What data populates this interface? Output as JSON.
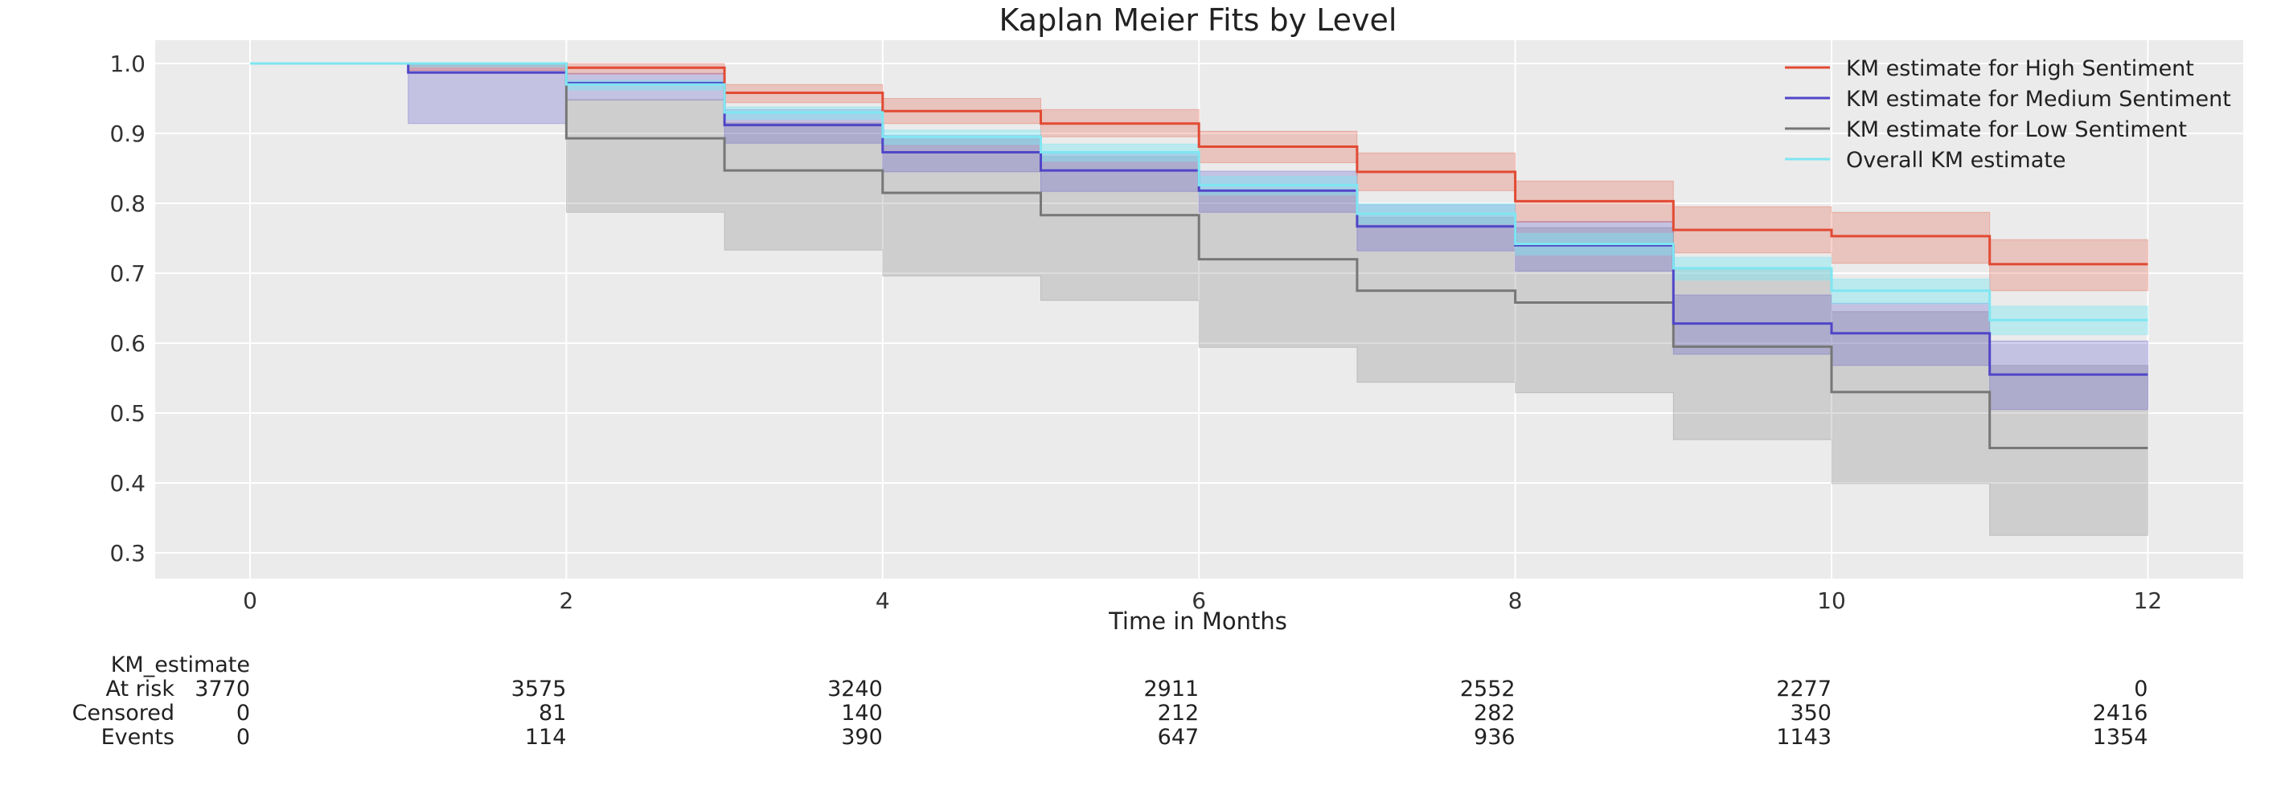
{
  "chart_data": {
    "type": "line",
    "title": "Kaplan Meier Fits by Level",
    "xlabel": "Time in Months",
    "ylabel": "",
    "xlim": [
      -0.6,
      12.6
    ],
    "ylim": [
      0.26,
      1.035
    ],
    "xticks": [
      0,
      2,
      4,
      6,
      8,
      10,
      12
    ],
    "yticks": [
      0.3,
      0.4,
      0.5,
      0.6,
      0.7,
      0.8,
      0.9,
      1.0
    ],
    "grid": true,
    "legend_position": "top-right",
    "series": [
      {
        "name": "KM estimate for High Sentiment",
        "color": "#e24a33",
        "step": "post",
        "x": [
          0,
          1,
          2,
          3,
          4,
          5,
          6,
          7,
          8,
          9,
          10,
          11,
          12
        ],
        "y": [
          1.0,
          1.0,
          0.994,
          0.958,
          0.932,
          0.914,
          0.881,
          0.845,
          0.803,
          0.762,
          0.753,
          0.713,
          0.713
        ],
        "ci_lower": [
          1.0,
          0.99,
          0.985,
          0.944,
          0.914,
          0.895,
          0.858,
          0.818,
          0.773,
          0.729,
          0.714,
          0.675,
          0.675
        ],
        "ci_upper": [
          1.0,
          1.0,
          1.0,
          0.97,
          0.95,
          0.934,
          0.903,
          0.872,
          0.832,
          0.795,
          0.787,
          0.748,
          0.748
        ]
      },
      {
        "name": "KM estimate for Medium Sentiment",
        "color": "#5046c8",
        "step": "post",
        "x": [
          0,
          1,
          2,
          3,
          4,
          5,
          6,
          7,
          8,
          9,
          10,
          11,
          12
        ],
        "y": [
          1.0,
          0.987,
          0.972,
          0.912,
          0.873,
          0.847,
          0.818,
          0.767,
          0.74,
          0.628,
          0.614,
          0.555,
          0.555
        ],
        "ci_lower": [
          1.0,
          0.914,
          0.948,
          0.886,
          0.845,
          0.817,
          0.787,
          0.732,
          0.703,
          0.584,
          0.568,
          0.505,
          0.505
        ],
        "ci_upper": [
          1.0,
          0.998,
          0.986,
          0.934,
          0.897,
          0.873,
          0.846,
          0.798,
          0.774,
          0.669,
          0.657,
          0.603,
          0.603
        ]
      },
      {
        "name": "KM estimate for Low Sentiment",
        "color": "#777777",
        "step": "post",
        "x": [
          0,
          1,
          2,
          3,
          4,
          5,
          6,
          7,
          8,
          9,
          10,
          11,
          12
        ],
        "y": [
          1.0,
          1.0,
          0.893,
          0.847,
          0.815,
          0.783,
          0.72,
          0.675,
          0.658,
          0.595,
          0.53,
          0.45,
          0.45
        ],
        "ci_lower": [
          1.0,
          1.0,
          0.787,
          0.733,
          0.696,
          0.661,
          0.594,
          0.544,
          0.529,
          0.462,
          0.399,
          0.325,
          0.325
        ],
        "ci_upper": [
          1.0,
          1.0,
          0.948,
          0.915,
          0.892,
          0.867,
          0.815,
          0.78,
          0.765,
          0.706,
          0.645,
          0.568,
          0.568
        ]
      },
      {
        "name": "Overall KM estimate",
        "color": "#7fe6f2",
        "step": "post",
        "x": [
          0,
          1,
          2,
          3,
          4,
          5,
          6,
          7,
          8,
          9,
          10,
          11,
          12
        ],
        "y": [
          1.0,
          1.0,
          0.97,
          0.93,
          0.895,
          0.873,
          0.826,
          0.785,
          0.742,
          0.707,
          0.675,
          0.633,
          0.633
        ],
        "ci_lower": [
          1.0,
          0.995,
          0.962,
          0.92,
          0.884,
          0.86,
          0.812,
          0.77,
          0.726,
          0.69,
          0.656,
          0.612,
          0.612
        ],
        "ci_upper": [
          1.0,
          1.0,
          0.976,
          0.938,
          0.905,
          0.885,
          0.839,
          0.8,
          0.757,
          0.723,
          0.692,
          0.653,
          0.653
        ]
      }
    ],
    "at_risk_table": {
      "header": "KM_estimate",
      "times": [
        0,
        2,
        4,
        6,
        8,
        10,
        12
      ],
      "rows": [
        {
          "label": "At risk",
          "values": [
            3770,
            3575,
            3240,
            2911,
            2552,
            2277,
            0
          ]
        },
        {
          "label": "Censored",
          "values": [
            0,
            81,
            140,
            212,
            282,
            350,
            2416
          ]
        },
        {
          "label": "Events",
          "values": [
            0,
            114,
            390,
            647,
            936,
            1143,
            1354
          ]
        }
      ]
    }
  }
}
